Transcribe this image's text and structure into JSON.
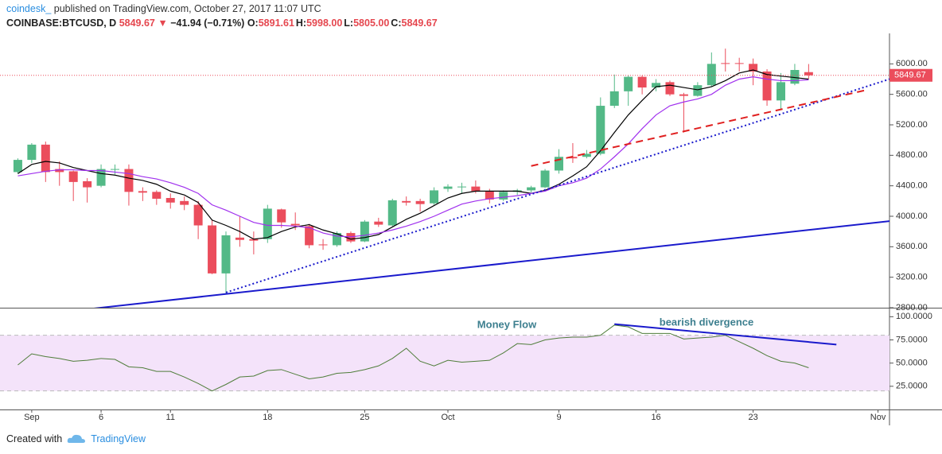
{
  "header": {
    "author": "coindesk_",
    "published": "published on TradingView.com, October 27, 2017 11:07 UTC",
    "symbol": "COINBASE:BTCUSD, D",
    "price": "5849.67",
    "change_arrow": "▼",
    "change": "−41.94 (−0.71%)",
    "ohlc": [
      {
        "label": "O:",
        "value": "5891.61"
      },
      {
        "label": "H:",
        "value": "5998.00"
      },
      {
        "label": "L:",
        "value": "5805.00"
      },
      {
        "label": "C:",
        "value": "5849.67"
      }
    ]
  },
  "chart_data": [
    {
      "type": "candlestick",
      "x": [
        "2017-08-31",
        "2017-09-01",
        "2017-09-02",
        "2017-09-03",
        "2017-09-04",
        "2017-09-05",
        "2017-09-06",
        "2017-09-07",
        "2017-09-08",
        "2017-09-09",
        "2017-09-10",
        "2017-09-11",
        "2017-09-12",
        "2017-09-13",
        "2017-09-14",
        "2017-09-15",
        "2017-09-16",
        "2017-09-17",
        "2017-09-18",
        "2017-09-19",
        "2017-09-20",
        "2017-09-21",
        "2017-09-22",
        "2017-09-23",
        "2017-09-24",
        "2017-09-25",
        "2017-09-26",
        "2017-09-27",
        "2017-09-28",
        "2017-09-29",
        "2017-09-30",
        "2017-10-01",
        "2017-10-02",
        "2017-10-03",
        "2017-10-04",
        "2017-10-05",
        "2017-10-06",
        "2017-10-07",
        "2017-10-08",
        "2017-10-09",
        "2017-10-10",
        "2017-10-11",
        "2017-10-12",
        "2017-10-13",
        "2017-10-14",
        "2017-10-15",
        "2017-10-16",
        "2017-10-17",
        "2017-10-18",
        "2017-10-19",
        "2017-10-20",
        "2017-10-21",
        "2017-10-22",
        "2017-10-23",
        "2017-10-24",
        "2017-10-25",
        "2017-10-26",
        "2017-10-27"
      ],
      "open": [
        4580,
        4740,
        4940,
        4620,
        4590,
        4460,
        4400,
        4610,
        4620,
        4330,
        4320,
        4240,
        4200,
        4150,
        3880,
        3250,
        3720,
        3700,
        3700,
        4090,
        3900,
        3870,
        3630,
        3620,
        3780,
        3670,
        3930,
        3880,
        4200,
        4200,
        4170,
        4360,
        4380,
        4390,
        4330,
        4220,
        4320,
        4340,
        4380,
        4600,
        4780,
        4780,
        4820,
        5450,
        5640,
        5830,
        5690,
        5760,
        5600,
        5580,
        5720,
        6010,
        6010,
        6000,
        5900,
        5520,
        5740,
        5891.61
      ],
      "high": [
        4760,
        4960,
        4980,
        4720,
        4600,
        4500,
        4680,
        4680,
        4680,
        4380,
        4340,
        4300,
        4260,
        4200,
        3950,
        3800,
        4000,
        3800,
        4150,
        4100,
        4050,
        3900,
        3700,
        3800,
        3800,
        3950,
        3980,
        4230,
        4260,
        4230,
        4380,
        4420,
        4440,
        4470,
        4360,
        4340,
        4360,
        4400,
        4620,
        4880,
        4960,
        4870,
        5560,
        5860,
        5850,
        5850,
        5800,
        5780,
        5620,
        5760,
        6150,
        6200,
        6080,
        6070,
        5930,
        5880,
        6000,
        5998
      ],
      "low": [
        4560,
        4700,
        4450,
        4400,
        4200,
        4180,
        4380,
        4550,
        4140,
        4200,
        4150,
        4100,
        4080,
        3700,
        3240,
        2980,
        3600,
        3500,
        3650,
        3850,
        3820,
        3580,
        3560,
        3600,
        3650,
        3660,
        3860,
        3870,
        4140,
        4060,
        4150,
        4320,
        4300,
        4300,
        4170,
        4200,
        4280,
        4310,
        4370,
        4560,
        4700,
        4760,
        4800,
        5420,
        5450,
        5600,
        5640,
        5580,
        5100,
        5570,
        5700,
        5900,
        5900,
        5720,
        5450,
        5400,
        5720,
        5805
      ],
      "close": [
        4740,
        4940,
        4580,
        4580,
        4450,
        4380,
        4620,
        4620,
        4320,
        4310,
        4230,
        4180,
        4150,
        3880,
        3250,
        3750,
        3690,
        3680,
        4100,
        3920,
        3880,
        3620,
        3620,
        3780,
        3670,
        3930,
        3890,
        4210,
        4180,
        4160,
        4340,
        4390,
        4390,
        4330,
        4220,
        4320,
        4340,
        4380,
        4600,
        4780,
        4760,
        4820,
        5450,
        5640,
        5830,
        5690,
        5750,
        5600,
        5580,
        5720,
        6000,
        6000,
        6000,
        5900,
        5520,
        5760,
        5920,
        5849.67
      ],
      "up_color": "#53b987",
      "down_color": "#eb4d5c",
      "overlays": [
        {
          "color": "#000000",
          "values": [
            4560,
            4680,
            4720,
            4700,
            4640,
            4600,
            4560,
            4540,
            4500,
            4470,
            4420,
            4330,
            4280,
            4180,
            3950,
            3880,
            3800,
            3700,
            3720,
            3800,
            3860,
            3890,
            3820,
            3770,
            3700,
            3720,
            3760,
            3860,
            3960,
            4040,
            4140,
            4240,
            4300,
            4330,
            4330,
            4330,
            4330,
            4300,
            4340,
            4420,
            4530,
            4650,
            4860,
            5100,
            5330,
            5520,
            5700,
            5720,
            5690,
            5660,
            5700,
            5780,
            5880,
            5920,
            5860,
            5840,
            5820,
            5800
          ]
        },
        {
          "color": "#a030ee",
          "values": [
            4530,
            4560,
            4590,
            4610,
            4610,
            4600,
            4600,
            4580,
            4560,
            4520,
            4490,
            4440,
            4380,
            4300,
            4150,
            4080,
            4000,
            3920,
            3880,
            3880,
            3870,
            3850,
            3780,
            3740,
            3730,
            3750,
            3780,
            3820,
            3870,
            3930,
            4000,
            4080,
            4160,
            4200,
            4230,
            4250,
            4270,
            4300,
            4330,
            4400,
            4440,
            4500,
            4620,
            4780,
            4950,
            5150,
            5330,
            5450,
            5500,
            5540,
            5600,
            5720,
            5800,
            5830,
            5800,
            5780,
            5780,
            5790
          ]
        }
      ],
      "trend_lines": [
        {
          "color": "#1a1acc",
          "style": "solid",
          "x": [
            "2017-09-05",
            "2017-11-02"
          ],
          "y": [
            2780,
            3940
          ]
        },
        {
          "color": "#1a1acc",
          "style": "dotted",
          "x": [
            "2017-09-15",
            "2017-11-02"
          ],
          "y": [
            3000,
            5810
          ]
        },
        {
          "color": "#e02020",
          "style": "dashed",
          "x": [
            "2017-10-07",
            "2017-10-31"
          ],
          "y": [
            4660,
            5650
          ]
        }
      ],
      "last_price": 5849.67,
      "last_price_color": "#eb4d5c",
      "xlim": [
        "2017-08-30",
        "2017-11-02"
      ],
      "xticks": [
        {
          "value": "2017-09-01",
          "label": "Sep"
        },
        {
          "value": "2017-09-06",
          "label": "6"
        },
        {
          "value": "2017-09-11",
          "label": "11"
        },
        {
          "value": "2017-09-18",
          "label": "18"
        },
        {
          "value": "2017-09-25",
          "label": "25"
        },
        {
          "value": "2017-10-01",
          "label": "Oct"
        },
        {
          "value": "2017-10-09",
          "label": "9"
        },
        {
          "value": "2017-10-16",
          "label": "16"
        },
        {
          "value": "2017-10-23",
          "label": "23"
        },
        {
          "value": "2017-11-01",
          "label": "Nov"
        }
      ],
      "ylim": [
        2800,
        6400
      ],
      "yticks": [
        {
          "value": 2800,
          "label": "2800.00"
        },
        {
          "value": 3200,
          "label": "3200.00"
        },
        {
          "value": 3600,
          "label": "3600.00"
        },
        {
          "value": 4000,
          "label": "4000.00"
        },
        {
          "value": 4400,
          "label": "4400.00"
        },
        {
          "value": 4800,
          "label": "4800.00"
        },
        {
          "value": 5200,
          "label": "5200.00"
        },
        {
          "value": 5600,
          "label": "5600.00"
        },
        {
          "value": 6000,
          "label": "6000.00"
        }
      ]
    },
    {
      "type": "line",
      "title": "Money Flow",
      "annotation": "bearish divergence",
      "x": [
        "2017-08-31",
        "2017-09-01",
        "2017-09-02",
        "2017-09-03",
        "2017-09-04",
        "2017-09-05",
        "2017-09-06",
        "2017-09-07",
        "2017-09-08",
        "2017-09-09",
        "2017-09-10",
        "2017-09-11",
        "2017-09-12",
        "2017-09-13",
        "2017-09-14",
        "2017-09-15",
        "2017-09-16",
        "2017-09-17",
        "2017-09-18",
        "2017-09-19",
        "2017-09-20",
        "2017-09-21",
        "2017-09-22",
        "2017-09-23",
        "2017-09-24",
        "2017-09-25",
        "2017-09-26",
        "2017-09-27",
        "2017-09-28",
        "2017-09-29",
        "2017-09-30",
        "2017-10-01",
        "2017-10-02",
        "2017-10-03",
        "2017-10-04",
        "2017-10-05",
        "2017-10-06",
        "2017-10-07",
        "2017-10-08",
        "2017-10-09",
        "2017-10-10",
        "2017-10-11",
        "2017-10-12",
        "2017-10-13",
        "2017-10-14",
        "2017-10-15",
        "2017-10-16",
        "2017-10-17",
        "2017-10-18",
        "2017-10-19",
        "2017-10-20",
        "2017-10-21",
        "2017-10-22",
        "2017-10-23",
        "2017-10-24",
        "2017-10-25",
        "2017-10-26",
        "2017-10-27"
      ],
      "values": [
        48,
        60,
        57,
        55,
        52,
        53,
        55,
        54,
        46,
        45,
        41,
        41,
        35,
        28,
        20,
        27,
        35,
        36,
        42,
        43,
        38,
        33,
        35,
        39,
        40,
        43,
        47,
        55,
        66,
        52,
        47,
        53,
        51,
        52,
        53,
        61,
        71,
        70,
        75,
        77,
        78,
        78,
        80,
        91,
        89,
        82,
        82,
        82,
        76,
        77,
        78,
        80,
        73,
        66,
        58,
        52,
        50,
        45
      ],
      "color": "#4f7d3a",
      "band": [
        20,
        80
      ],
      "band_color": "#f4e3fa",
      "divergence_line": {
        "color": "#1a1acc",
        "x": [
          "2017-10-13",
          "2017-10-29"
        ],
        "y": [
          92,
          70
        ]
      },
      "ylim": [
        0,
        108
      ],
      "yticks": [
        {
          "value": 25,
          "label": "25.0000"
        },
        {
          "value": 50,
          "label": "50.0000"
        },
        {
          "value": 75,
          "label": "75.0000"
        },
        {
          "value": 100,
          "label": "100.0000"
        }
      ]
    }
  ],
  "footer": {
    "created_with": "Created with",
    "brand": "TradingView"
  }
}
